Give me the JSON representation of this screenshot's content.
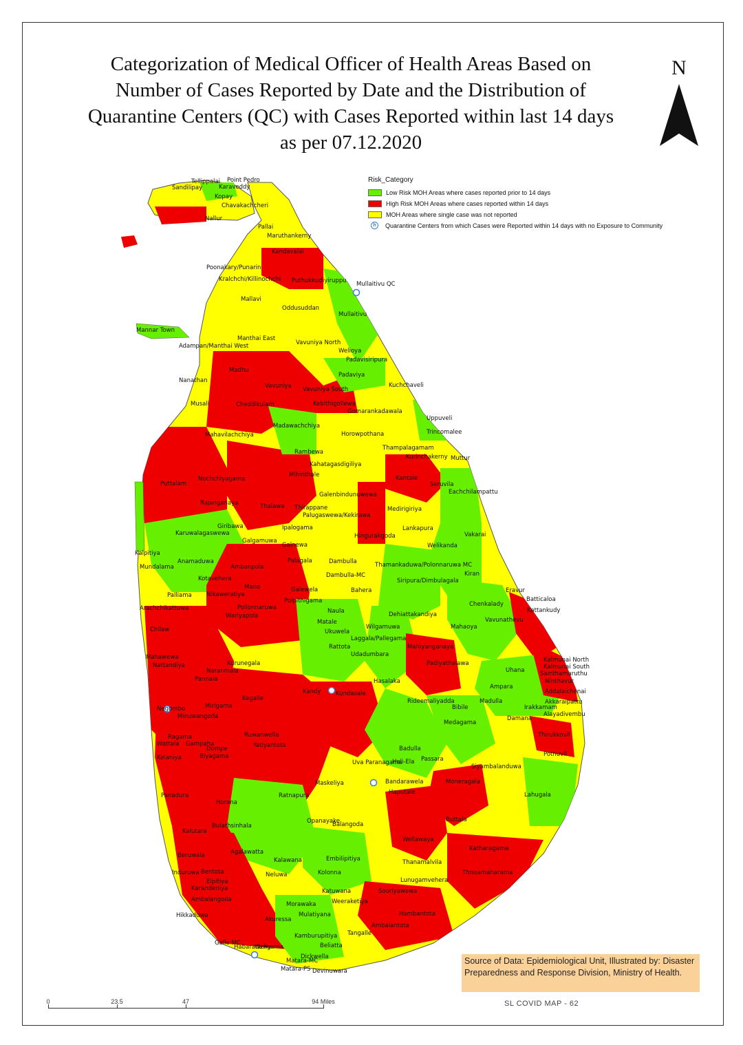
{
  "title_lines": [
    "Categorization of Medical Officer of Health Areas Based on",
    "Number of Cases Reported by Date and the Distribution of",
    "Quarantine Centers (QC) with Cases Reported within last 14 days",
    "as per 07.12.2020"
  ],
  "north_arrow": {
    "letter": "N"
  },
  "legend": {
    "title": "Risk_Category",
    "items": [
      {
        "label": "Low Risk MOH Areas where cases reported prior to 14 days",
        "color": "#66f000"
      },
      {
        "label": "High Risk MOH Areas where cases reported within 14 days",
        "color": "#ee0000"
      },
      {
        "label": "MOH Areas where single case was not reported",
        "color": "#ffff00"
      }
    ],
    "qc_label": "Quarantine Centers from which Cases were Reported within 14 days with no Exposure to Community"
  },
  "map_labels": [
    "Point Pedro",
    "Tellippalai",
    "Sandilipay",
    "Karaveddy",
    "Kopay",
    "Chavakachcheri",
    "Nallur",
    "Pallai",
    "Maruthankerny",
    "Kandavalai",
    "Poonakary/Punarin",
    "Kralchchi/Killinochchi",
    "Puthukkudiyiruppu",
    "Mullaitivu QC",
    "Mallavi",
    "Oddusuddan",
    "Mullaitivu",
    "Mannar Town",
    "Manthai East",
    "Vavuniya North",
    "Adampan/Manthai West",
    "Welioya",
    "Padavisiripura",
    "Madhu",
    "Padaviya",
    "Kuchchaveli",
    "Nanathan",
    "Vavuniya",
    "Vavuniya South",
    "Musali",
    "Cheddikulam",
    "Kebithigollewa",
    "Gomarankadawala",
    "Uppuveli",
    "Madawachchiya",
    "Horowpothana",
    "Trincomalee",
    "Mahavilachchiya",
    "Rambewa",
    "Thampalagamam",
    "Kurinchakerny",
    "Muttur",
    "Kantale",
    "Kahatagasdigiliya",
    "Mihinthale",
    "Nochchiyagama",
    "Seruvila",
    "Puttalam",
    "Eachchilampattu",
    "Galenbindunuwewa",
    "Rajanganaya",
    "Thirappane",
    "Medirigiriya",
    "Thalawa",
    "Palugaswewa/Kekirawa",
    "Giribawa",
    "Ipalogama",
    "Lankapura",
    "Vakarai",
    "Karuwalagaswewa",
    "Hingurakgoda",
    "Galgamuwa",
    "Galnewa",
    "Welikanda",
    "Kalpitiya",
    "Dambulla",
    "Anamaduwa",
    "Palagala",
    "Mundalama",
    "Ambanpola",
    "Dambulla-MC",
    "Kiran",
    "Kotavehera",
    "Thamankaduwa/Polonnaruwa MC",
    "Mano",
    "Galewela",
    "Bahera",
    "Siripura/Dimbulagala",
    "Chenkalady",
    "Palliama",
    "Nikaweratiya",
    "Eravur",
    "Batticaloa",
    "Kattankudy",
    "Pollonnaruwa",
    "Polpithigama",
    "Naula",
    "Dehiattakandiya",
    "Vavunathevu",
    "Mahaoya",
    "Arachchikattuwa",
    "Wariyapola",
    "Matale",
    "Wilgamuwa",
    "Chilaw",
    "Ukuwela",
    "Laggala/Pallegama",
    "Mahiyanganaya",
    "Rattota",
    "Udadumbara",
    "Padiyathalawa",
    "Mahawewa",
    "Naranmala",
    "Hasalaka",
    "Uhana",
    "Ampara",
    "Kalmunai North",
    "Kalmunai South",
    "Sainthamaruthu",
    "Ninthavur",
    "Nattandiya",
    "Pannala",
    "Kurunegala",
    "Kundasale",
    "Rideemaliyadda",
    "Bibile",
    "Madulla",
    "Addalaichenai",
    "Akkaraipattu",
    "Negombo",
    "Minuwangoda",
    "Mirigama",
    "Kegalle",
    "Gampaha",
    "Kandy",
    "Medagama",
    "Damana",
    "Irakkamam",
    "Alayadivembu",
    "Thirukkovil",
    "Ragama",
    "Wattala",
    "Kelaniya",
    "Biyagama",
    "Dompe",
    "Ruwanwella",
    "Yatiyantota",
    "Uva Paranagama",
    "Hali-Ela",
    "Badulla",
    "Passara",
    "Pothuvil",
    "Maskeliya",
    "Haputale",
    "Bandarawela",
    "Siyambalanduwa",
    "Moneragala",
    "Lahugala",
    "Panadura",
    "Horana",
    "Ratnapura",
    "Buttala",
    "Kalutara",
    "Bulathsinhala",
    "Opanayake",
    "Balangoda",
    "Wellawaya",
    "Beruwala",
    "Agalawatta",
    "Kalawana",
    "Embilipitiya",
    "Katharagama",
    "Thanamalvila",
    "Thissamaharama",
    "Induruwa",
    "Bentota",
    "Elpitiya",
    "Neluwa",
    "Kolonna",
    "Sooriyawewa",
    "Lunugamvehera",
    "Ambalangoda",
    "Karandeniya",
    "Hikkaduwa",
    "Morawaka",
    "Weeraketiya",
    "Hambantota",
    "Ambalantota",
    "Tangalle",
    "Beliatta",
    "Dickwella",
    "Matara-MC",
    "Devinuwara",
    "Matara-PS",
    "Galle MC",
    "Habaraduwa",
    "Weligama",
    "Akuressa",
    "Kamburupitiya",
    "Mulatiyana",
    "Katuwana"
  ],
  "scale_bar": {
    "labels": [
      "0",
      "23.5",
      "47",
      "94 Miles"
    ],
    "values": [
      0,
      23.5,
      47,
      94
    ]
  },
  "source_box": {
    "text": "Source of Data: Epidemiological Unit, Illustrated by: Disaster Preparedness and Response Division, Ministry of Health."
  },
  "map_id": "SL COVID MAP - 62"
}
